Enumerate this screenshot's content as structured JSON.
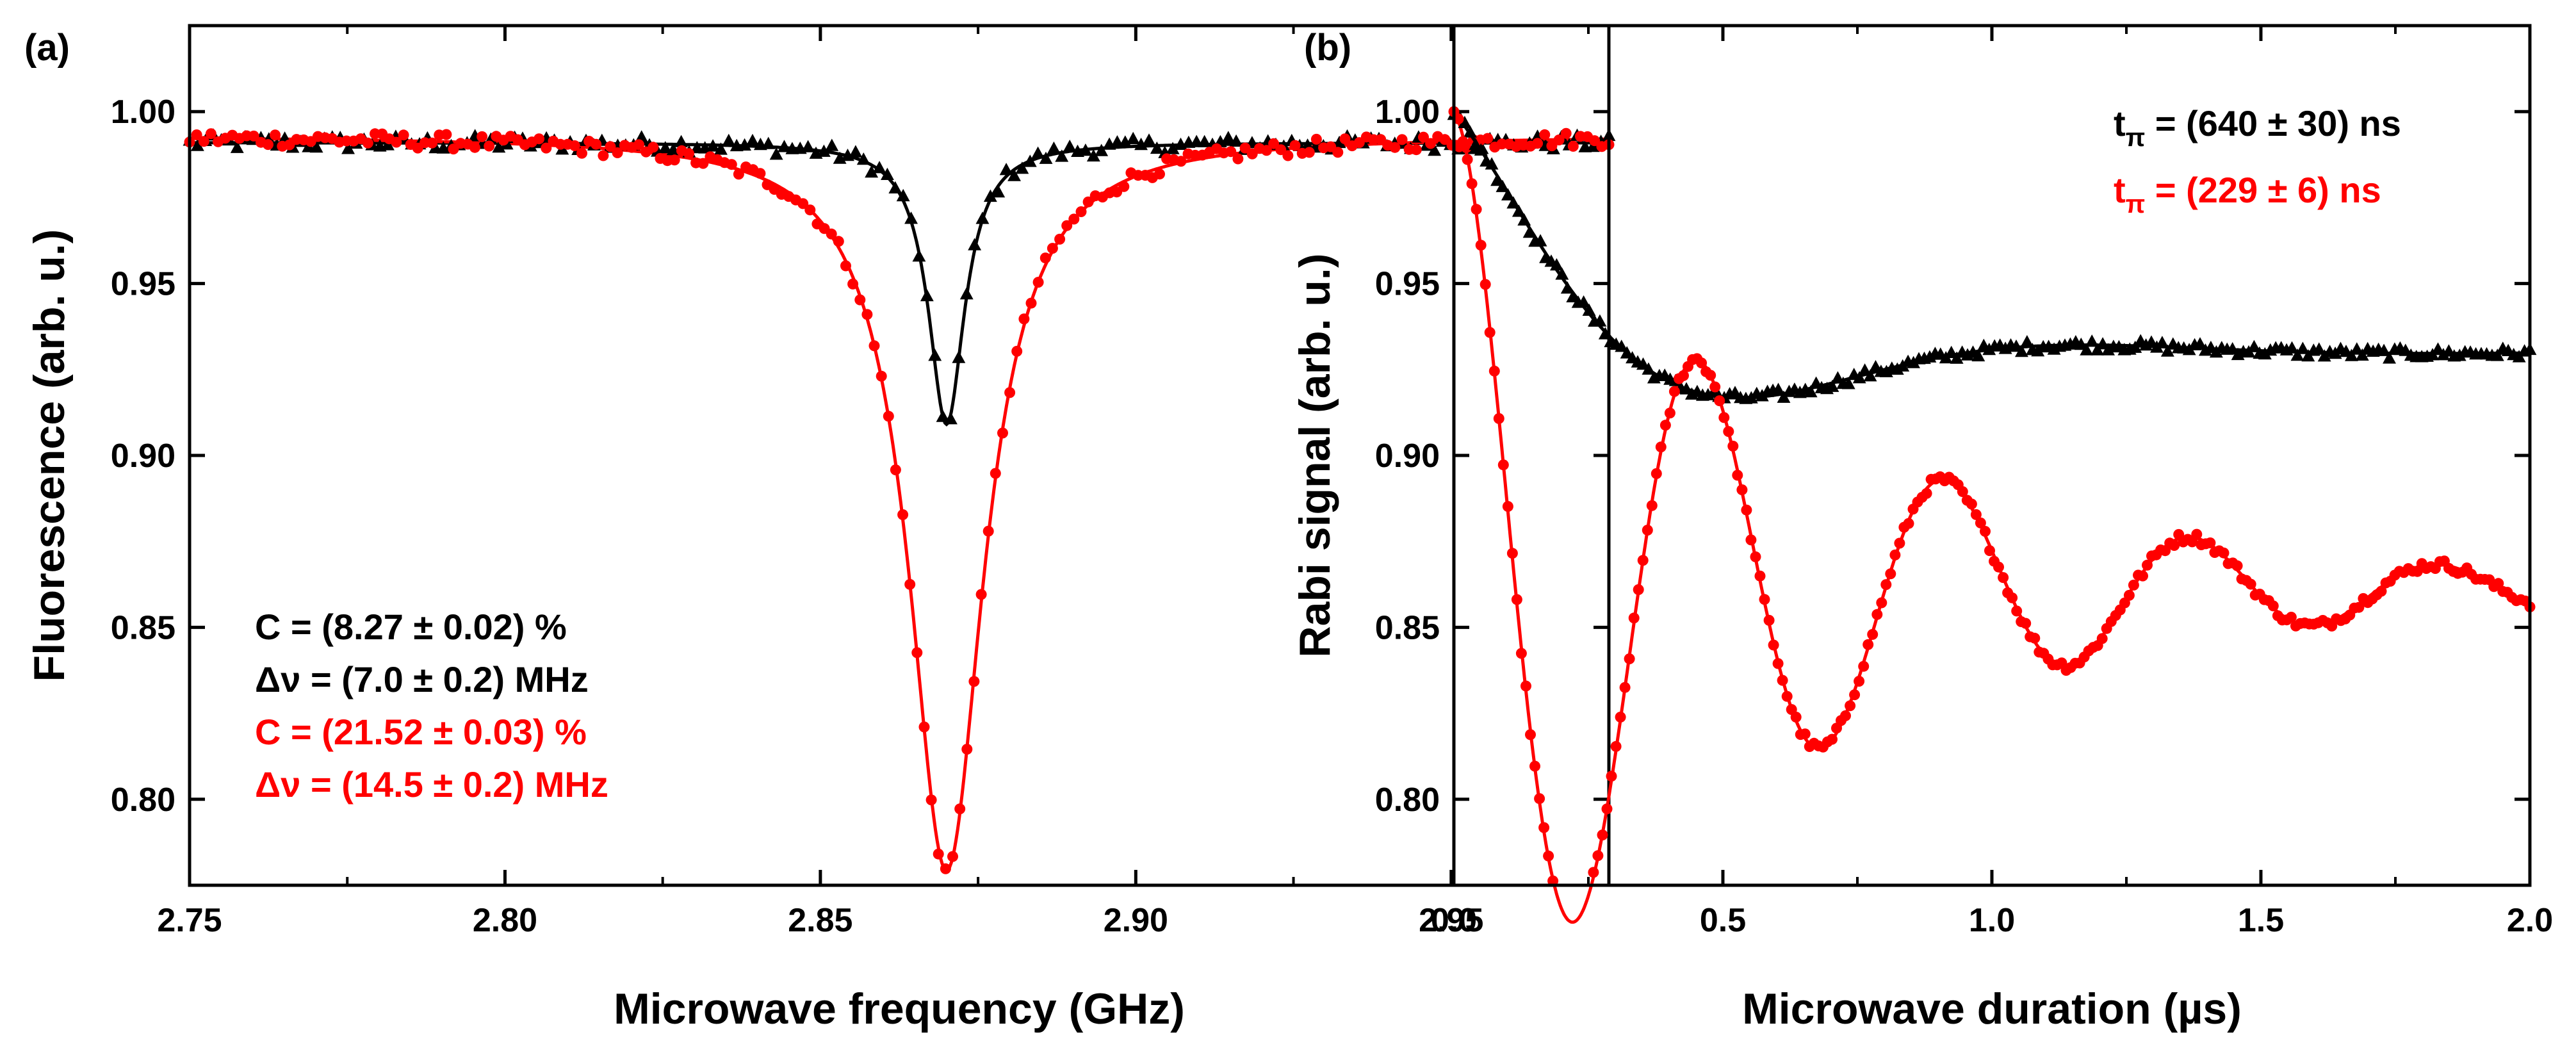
{
  "colors": {
    "black": "#000000",
    "red": "#ff0000"
  },
  "chart_data": [
    {
      "type": "scatter",
      "panel_label": "(a)",
      "xlabel": "Microwave frequency (GHz)",
      "ylabel": "Fluorescence (arb. u.)",
      "xlim": [
        2.75,
        2.975
      ],
      "ylim": [
        0.775,
        1.025
      ],
      "xticks": [
        2.75,
        2.8,
        2.85,
        2.9,
        2.95
      ],
      "xtick_labels": [
        "2.75",
        "2.80",
        "2.85",
        "2.90",
        "2.95"
      ],
      "yticks": [
        0.8,
        0.85,
        0.9,
        0.95,
        1.0
      ],
      "ytick_labels": [
        "0.80",
        "0.85",
        "0.90",
        "0.95",
        "1.00"
      ],
      "series": [
        {
          "name": "black ODMR (triangles)",
          "color": "#000000",
          "marker": "triangle",
          "fit": {
            "model": "lorentzian",
            "baseline": 0.991,
            "center": 2.87,
            "fwhm_ghz": 0.007,
            "contrast": 0.0827
          },
          "x_range": [
            2.75,
            2.975
          ],
          "n_points": 180
        },
        {
          "name": "red ODMR (circles)",
          "color": "#ff0000",
          "marker": "circle",
          "fit": {
            "model": "lorentzian",
            "baseline": 0.993,
            "center": 2.87,
            "fwhm_ghz": 0.0145,
            "contrast": 0.2152
          },
          "x_range": [
            2.75,
            2.975
          ],
          "n_points": 200
        }
      ],
      "annotations": [
        {
          "text": "C = (8.27 ± 0.02) %",
          "color": "#000000"
        },
        {
          "text": "Δν = (7.0 ± 0.2) MHz",
          "color": "#000000"
        },
        {
          "text": "C = (21.52 ± 0.03) %",
          "color": "#ff0000"
        },
        {
          "text": "Δν = (14.5 ± 0.2) MHz",
          "color": "#ff0000"
        }
      ]
    },
    {
      "type": "scatter",
      "panel_label": "(b)",
      "xlabel": "Microwave duration (µs)",
      "ylabel": "Rabi signal (arb. u.)",
      "xlim": [
        0.0,
        2.0
      ],
      "ylim": [
        0.775,
        1.025
      ],
      "xticks": [
        0.0,
        0.5,
        1.0,
        1.5,
        2.0
      ],
      "xtick_labels": [
        "0.0",
        "0.5",
        "1.0",
        "1.5",
        "2.0"
      ],
      "yticks": [
        0.8,
        0.85,
        0.9,
        0.95,
        1.0
      ],
      "ytick_labels": [
        "0.80",
        "0.85",
        "0.90",
        "0.95",
        "1.00"
      ],
      "series": [
        {
          "name": "black Rabi (triangles)",
          "color": "#000000",
          "marker": "triangle",
          "fit": {
            "model": "damped_rabi",
            "offset": 0.93,
            "amplitude": 0.07,
            "t_pi_us": 0.64,
            "tau_us": 0.35
          },
          "x_range": [
            0.0,
            2.0
          ],
          "n_points": 200
        },
        {
          "name": "red Rabi (circles)",
          "color": "#ff0000",
          "marker": "circle",
          "fit": {
            "model": "damped_rabi",
            "offset": 0.861,
            "amplitude": 0.139,
            "t_pi_us": 0.229,
            "tau_us": 0.62
          },
          "x_range": [
            0.0,
            2.0
          ],
          "n_points": 240
        }
      ],
      "annotations": [
        {
          "text_main": "t",
          "text_sub": "π",
          "text_rest": " = (640 ± 30) ns",
          "color": "#000000"
        },
        {
          "text_main": "t",
          "text_sub": "π",
          "text_rest": " = (229 ± 6) ns",
          "color": "#ff0000"
        }
      ]
    }
  ]
}
